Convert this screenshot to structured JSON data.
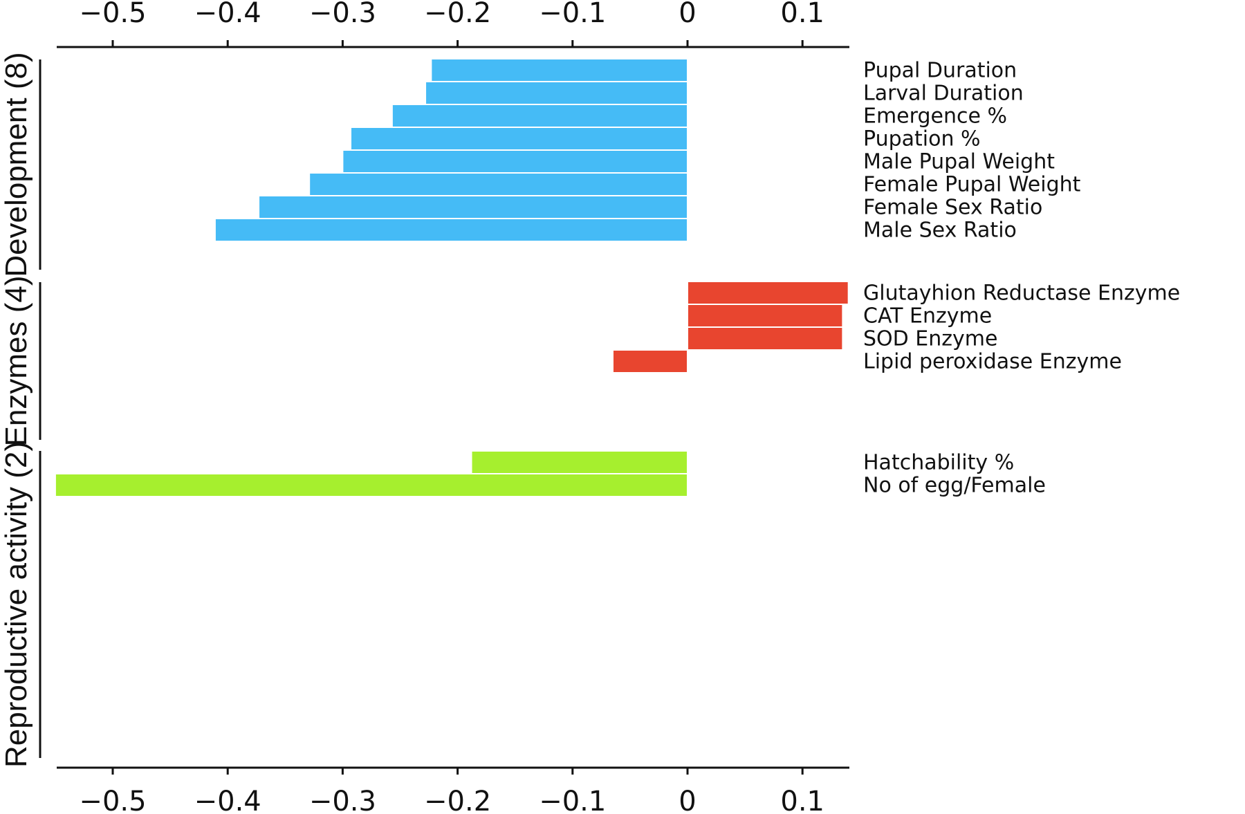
{
  "chart_data": {
    "type": "bar",
    "orientation": "horizontal",
    "xlim": [
      -0.55,
      0.14
    ],
    "ticks": [
      -0.5,
      -0.4,
      -0.3,
      -0.2,
      -0.1,
      0,
      0.1
    ],
    "tick_labels": [
      "−0.5",
      "−0.4",
      "−0.3",
      "−0.2",
      "−0.1",
      "0",
      "0.1"
    ],
    "axis_positions": [
      "top",
      "bottom"
    ],
    "grid": false,
    "legend": "none",
    "groups": [
      {
        "label": "Development (8)",
        "color": "#45bbf6",
        "bars": [
          {
            "label": "Pupal Duration",
            "value": -0.223
          },
          {
            "label": "Larval Duration",
            "value": -0.228
          },
          {
            "label": "Emergence %",
            "value": -0.257
          },
          {
            "label": "Pupation %",
            "value": -0.293
          },
          {
            "label": "Male Pupal Weight",
            "value": -0.3
          },
          {
            "label": "Female Pupal Weight",
            "value": -0.329
          },
          {
            "label": "Female Sex Ratio",
            "value": -0.373
          },
          {
            "label": "Male Sex Ratio",
            "value": -0.411
          }
        ]
      },
      {
        "label": "Enzymes (4)",
        "color": "#e8452f",
        "bars": [
          {
            "label": "Glutayhion Reductase Enzyme",
            "value": 0.14
          },
          {
            "label": "CAT Enzyme",
            "value": 0.135
          },
          {
            "label": "SOD Enzyme",
            "value": 0.135
          },
          {
            "label": "Lipid peroxidase Enzyme",
            "value": -0.065
          }
        ]
      },
      {
        "label": "Reproductive activity (2)",
        "color": "#a6ef2e",
        "bars": [
          {
            "label": "Hatchability %",
            "value": -0.188
          },
          {
            "label": "No of egg/Female",
            "value": -0.55
          }
        ]
      }
    ]
  }
}
